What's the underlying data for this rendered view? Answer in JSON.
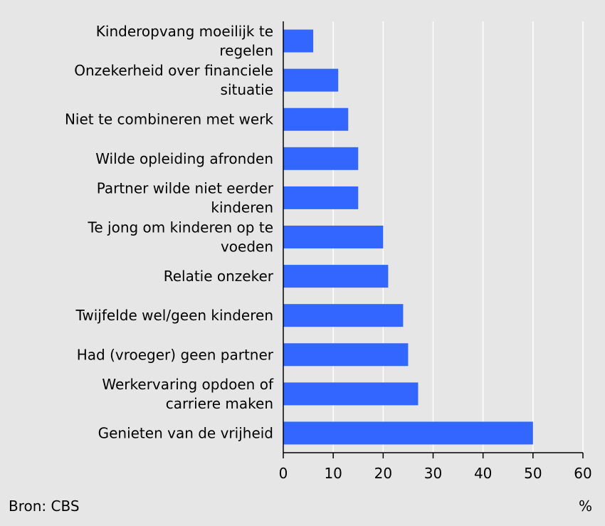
{
  "chart_data": {
    "type": "bar",
    "orientation": "horizontal",
    "categories": [
      [
        "Kinderopvang moeilijk te",
        "regelen"
      ],
      [
        "Onzekerheid over financiele",
        "situatie"
      ],
      [
        "Niet te combineren met werk"
      ],
      [
        "Wilde opleiding afronden"
      ],
      [
        "Partner wilde niet eerder",
        "kinderen"
      ],
      [
        "Te jong om kinderen op te",
        "voeden"
      ],
      [
        "Relatie onzeker"
      ],
      [
        "Twijfelde wel/geen kinderen"
      ],
      [
        "Had (vroeger) geen partner"
      ],
      [
        "Werkervaring opdoen of",
        "carriere maken"
      ],
      [
        "Genieten van de vrijheid"
      ]
    ],
    "values": [
      6,
      11,
      13,
      15,
      15,
      20,
      21,
      24,
      25,
      27,
      50
    ],
    "xlim": [
      0,
      60
    ],
    "xticks": [
      "0",
      "10",
      "20",
      "30",
      "40",
      "50",
      "60"
    ],
    "xlabel": "%",
    "grid": true,
    "bar_color": "#3366ff",
    "grid_color": "#ffffff"
  },
  "source": "Bron: CBS"
}
